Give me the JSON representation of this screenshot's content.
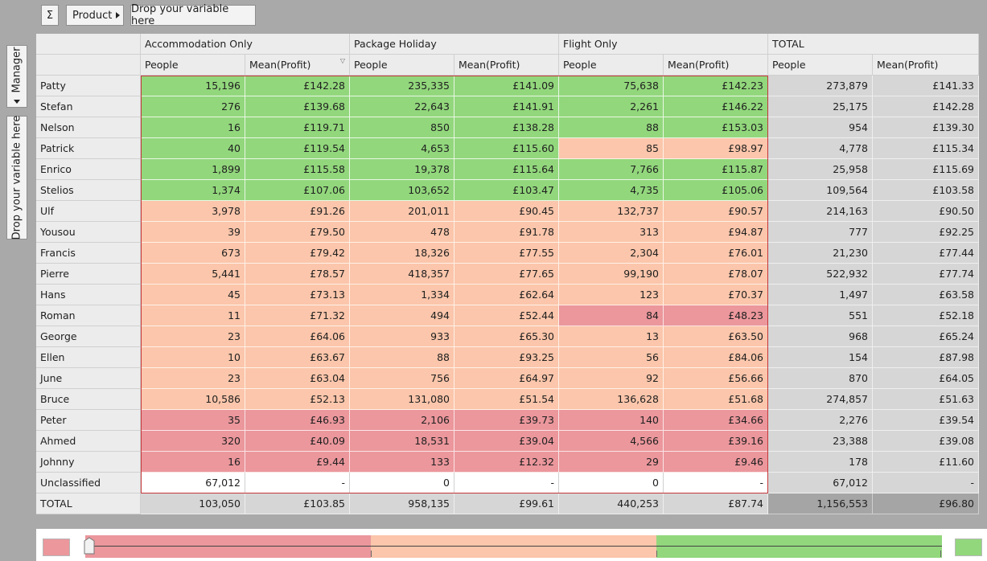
{
  "toolbar": {
    "sigma_label": "Σ",
    "product_label": "Product",
    "drop_label": "Drop your variable here"
  },
  "side": {
    "manager_label": "Manager",
    "drop_label": "Drop your variable here"
  },
  "table": {
    "groups": [
      "Accommodation Only",
      "Package Holiday",
      "Flight Only",
      "TOTAL"
    ],
    "subheaders": [
      "People",
      "Mean(Profit)"
    ],
    "rows": [
      {
        "name": "Patty",
        "values": [
          "15,196",
          "£142.28",
          "235,335",
          "£141.09",
          "75,638",
          "£142.23",
          "273,879",
          "£141.33"
        ],
        "status": [
          "good",
          "good",
          "good",
          "good",
          "good",
          "good"
        ]
      },
      {
        "name": "Stefan",
        "values": [
          "276",
          "£139.68",
          "22,643",
          "£141.91",
          "2,261",
          "£146.22",
          "25,175",
          "£142.28"
        ],
        "status": [
          "good",
          "good",
          "good",
          "good",
          "good",
          "good"
        ]
      },
      {
        "name": "Nelson",
        "values": [
          "16",
          "£119.71",
          "850",
          "£138.28",
          "88",
          "£153.03",
          "954",
          "£139.30"
        ],
        "status": [
          "good",
          "good",
          "good",
          "good",
          "good",
          "good"
        ]
      },
      {
        "name": "Patrick",
        "values": [
          "40",
          "£119.54",
          "4,653",
          "£115.60",
          "85",
          "£98.97",
          "4,778",
          "£115.34"
        ],
        "status": [
          "good",
          "good",
          "good",
          "good",
          "mid",
          "mid"
        ]
      },
      {
        "name": "Enrico",
        "values": [
          "1,899",
          "£115.58",
          "19,378",
          "£115.64",
          "7,766",
          "£115.87",
          "25,958",
          "£115.69"
        ],
        "status": [
          "good",
          "good",
          "good",
          "good",
          "good",
          "good"
        ]
      },
      {
        "name": "Stelios",
        "values": [
          "1,374",
          "£107.06",
          "103,652",
          "£103.47",
          "4,735",
          "£105.06",
          "109,564",
          "£103.58"
        ],
        "status": [
          "good",
          "good",
          "good",
          "good",
          "good",
          "good"
        ]
      },
      {
        "name": "Ulf",
        "values": [
          "3,978",
          "£91.26",
          "201,011",
          "£90.45",
          "132,737",
          "£90.57",
          "214,163",
          "£90.50"
        ],
        "status": [
          "mid",
          "mid",
          "mid",
          "mid",
          "mid",
          "mid"
        ]
      },
      {
        "name": "Yousou",
        "values": [
          "39",
          "£79.50",
          "478",
          "£91.78",
          "313",
          "£94.87",
          "777",
          "£92.25"
        ],
        "status": [
          "mid",
          "mid",
          "mid",
          "mid",
          "mid",
          "mid"
        ]
      },
      {
        "name": "Francis",
        "values": [
          "673",
          "£79.42",
          "18,326",
          "£77.55",
          "2,304",
          "£76.01",
          "21,230",
          "£77.44"
        ],
        "status": [
          "mid",
          "mid",
          "mid",
          "mid",
          "mid",
          "mid"
        ]
      },
      {
        "name": "Pierre",
        "values": [
          "5,441",
          "£78.57",
          "418,357",
          "£77.65",
          "99,190",
          "£78.07",
          "522,932",
          "£77.74"
        ],
        "status": [
          "mid",
          "mid",
          "mid",
          "mid",
          "mid",
          "mid"
        ]
      },
      {
        "name": "Hans",
        "values": [
          "45",
          "£73.13",
          "1,334",
          "£62.64",
          "123",
          "£70.37",
          "1,497",
          "£63.58"
        ],
        "status": [
          "mid",
          "mid",
          "mid",
          "mid",
          "mid",
          "mid"
        ]
      },
      {
        "name": "Roman",
        "values": [
          "11",
          "£71.32",
          "494",
          "£52.44",
          "84",
          "£48.23",
          "551",
          "£52.18"
        ],
        "status": [
          "mid",
          "mid",
          "mid",
          "mid",
          "bad",
          "bad"
        ]
      },
      {
        "name": "George",
        "values": [
          "23",
          "£64.06",
          "933",
          "£65.30",
          "13",
          "£63.50",
          "968",
          "£65.24"
        ],
        "status": [
          "mid",
          "mid",
          "mid",
          "mid",
          "mid",
          "mid"
        ]
      },
      {
        "name": "Ellen",
        "values": [
          "10",
          "£63.67",
          "88",
          "£93.25",
          "56",
          "£84.06",
          "154",
          "£87.98"
        ],
        "status": [
          "mid",
          "mid",
          "mid",
          "mid",
          "mid",
          "mid"
        ]
      },
      {
        "name": "June",
        "values": [
          "23",
          "£63.04",
          "756",
          "£64.97",
          "92",
          "£56.66",
          "870",
          "£64.05"
        ],
        "status": [
          "mid",
          "mid",
          "mid",
          "mid",
          "mid",
          "mid"
        ]
      },
      {
        "name": "Bruce",
        "values": [
          "10,586",
          "£52.13",
          "131,080",
          "£51.54",
          "136,628",
          "£51.68",
          "274,857",
          "£51.63"
        ],
        "status": [
          "mid",
          "mid",
          "mid",
          "mid",
          "mid",
          "mid"
        ]
      },
      {
        "name": "Peter",
        "values": [
          "35",
          "£46.93",
          "2,106",
          "£39.73",
          "140",
          "£34.66",
          "2,276",
          "£39.54"
        ],
        "status": [
          "bad",
          "bad",
          "bad",
          "bad",
          "bad",
          "bad"
        ]
      },
      {
        "name": "Ahmed",
        "values": [
          "320",
          "£40.09",
          "18,531",
          "£39.04",
          "4,566",
          "£39.16",
          "23,388",
          "£39.08"
        ],
        "status": [
          "bad",
          "bad",
          "bad",
          "bad",
          "bad",
          "bad"
        ]
      },
      {
        "name": "Johnny",
        "values": [
          "16",
          "£9.44",
          "133",
          "£12.32",
          "29",
          "£9.46",
          "178",
          "£11.60"
        ],
        "status": [
          "bad",
          "bad",
          "bad",
          "bad",
          "bad",
          "bad"
        ]
      },
      {
        "name": "Unclassified",
        "values": [
          "67,012",
          "-",
          "0",
          "-",
          "0",
          "-",
          "67,012",
          "-"
        ],
        "status": [
          "plain",
          "plain",
          "plain",
          "plain",
          "plain",
          "plain"
        ]
      },
      {
        "name": "TOTAL",
        "values": [
          "103,050",
          "£103.85",
          "958,135",
          "£99.61",
          "440,253",
          "£87.74",
          "1,156,553",
          "£96.80"
        ],
        "status": [
          "tot",
          "tot",
          "tot",
          "tot",
          "tot",
          "tot"
        ]
      }
    ]
  },
  "legend": {
    "colors": {
      "bad": "#eb979c",
      "mid": "#fbc6ab",
      "good": "#92d77c"
    }
  }
}
